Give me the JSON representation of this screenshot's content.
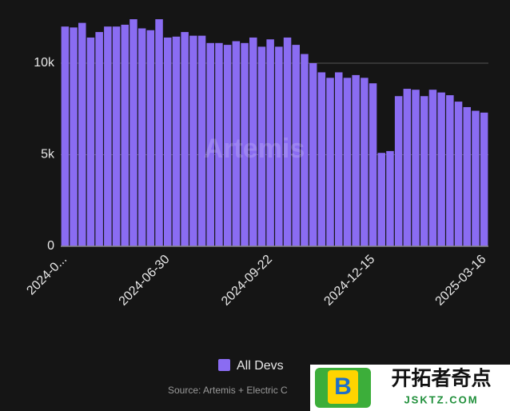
{
  "chart_data": {
    "type": "bar",
    "categories": [
      "2024-0...",
      null,
      null,
      null,
      null,
      null,
      null,
      null,
      null,
      null,
      null,
      null,
      "2024-06-30",
      null,
      null,
      null,
      null,
      null,
      null,
      null,
      null,
      null,
      null,
      null,
      "2024-09-22",
      null,
      null,
      null,
      null,
      null,
      null,
      null,
      null,
      null,
      null,
      null,
      "2024-12-15",
      null,
      null,
      null,
      null,
      null,
      null,
      null,
      null,
      null,
      null,
      null,
      null,
      "2025-03-16"
    ],
    "series": [
      {
        "name": "All Devs",
        "color": "#8a6cf2",
        "values": [
          12000,
          11950,
          12200,
          11400,
          11700,
          12000,
          12000,
          12100,
          12400,
          11900,
          11800,
          12400,
          11400,
          11450,
          11700,
          11500,
          11500,
          11100,
          11100,
          11000,
          11200,
          11100,
          11400,
          10900,
          11300,
          10900,
          11400,
          11000,
          10500,
          10000,
          9500,
          9200,
          9500,
          9200,
          9350,
          9200,
          8900,
          5100,
          5200,
          8200,
          8600,
          8550,
          8200,
          8550,
          8400,
          8250,
          7900,
          7600,
          7400,
          7300
        ]
      }
    ],
    "ylim": [
      0,
      13500
    ],
    "yticks": [
      0,
      {
        "value": 5000,
        "label": "5k"
      },
      {
        "value": 10000,
        "label": "10k"
      }
    ],
    "grid": true,
    "legend": "bottom",
    "source": "Source: Artemis + Electric C",
    "watermark": "Artemis"
  },
  "overlay": {
    "logo": "B",
    "name": "开拓者奇点",
    "site": "JSKTZ.COM"
  }
}
